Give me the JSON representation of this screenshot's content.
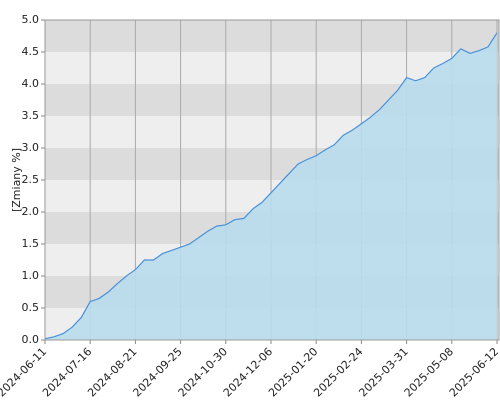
{
  "chart_data": {
    "type": "area",
    "y_label": "[Zmiany %]",
    "categories": [
      "2024-06-11",
      null,
      null,
      null,
      null,
      "2024-07-16",
      null,
      null,
      null,
      null,
      "2024-08-21",
      null,
      null,
      null,
      null,
      "2024-09-25",
      null,
      null,
      null,
      null,
      "2024-10-30",
      null,
      null,
      null,
      null,
      "2024-12-06",
      null,
      null,
      null,
      null,
      "2025-01-20",
      null,
      null,
      null,
      null,
      "2025-02-24",
      null,
      null,
      null,
      null,
      "2025-03-31",
      null,
      null,
      null,
      null,
      "2025-05-08",
      null,
      null,
      null,
      null,
      "2025-06-12"
    ],
    "values": [
      0.02,
      0.05,
      0.1,
      0.2,
      0.35,
      0.6,
      0.65,
      0.75,
      0.88,
      1.0,
      1.1,
      1.25,
      1.25,
      1.35,
      1.4,
      1.45,
      1.5,
      1.6,
      1.7,
      1.78,
      1.8,
      1.88,
      1.9,
      2.05,
      2.15,
      2.3,
      2.45,
      2.6,
      2.75,
      2.82,
      2.88,
      2.97,
      3.05,
      3.2,
      3.28,
      3.38,
      3.48,
      3.6,
      3.75,
      3.9,
      4.1,
      4.05,
      4.1,
      4.25,
      4.32,
      4.4,
      4.55,
      4.48,
      4.52,
      4.58,
      4.8
    ],
    "color": "#4a90d9",
    "fill_color": "#b8dcec",
    "ylim": [
      0,
      5
    ],
    "yticks": [
      {
        "value": 0,
        "label": "0.0"
      },
      0.5,
      {
        "value": 1,
        "label": "1.0"
      },
      1.5,
      {
        "value": 2,
        "label": "2.0"
      },
      2.5,
      {
        "value": 3,
        "label": "3.0"
      },
      3.5,
      {
        "value": 4,
        "label": "4.0"
      },
      4.5,
      {
        "value": 5,
        "label": "5.0"
      }
    ],
    "grid": true
  }
}
